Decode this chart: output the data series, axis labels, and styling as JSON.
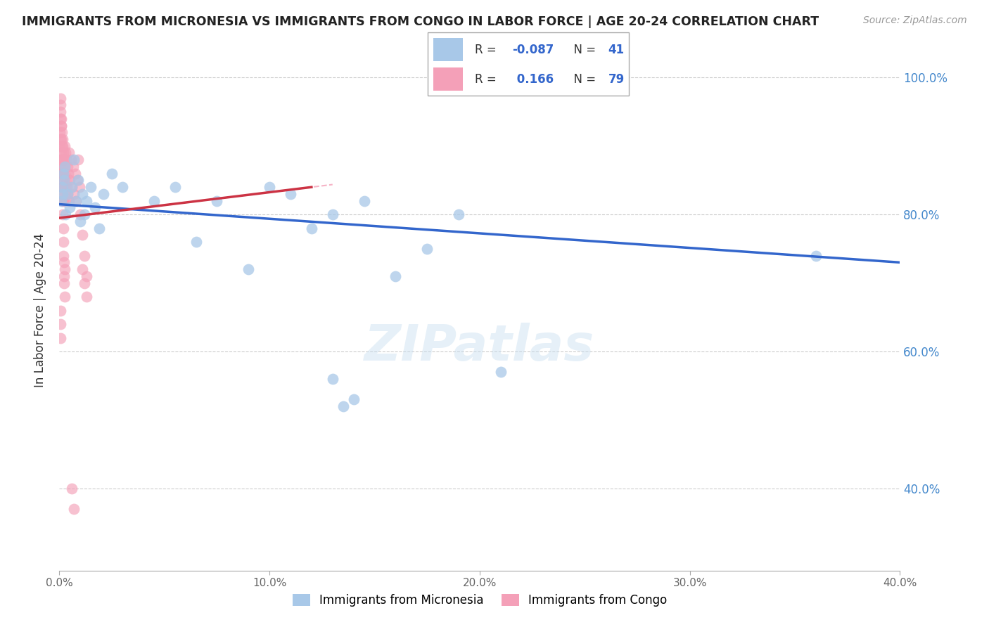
{
  "title": "IMMIGRANTS FROM MICRONESIA VS IMMIGRANTS FROM CONGO IN LABOR FORCE | AGE 20-24 CORRELATION CHART",
  "source": "Source: ZipAtlas.com",
  "ylabel": "In Labor Force | Age 20-24",
  "legend_label_1": "Immigrants from Micronesia",
  "legend_label_2": "Immigrants from Congo",
  "R1": -0.087,
  "N1": 41,
  "R2": 0.166,
  "N2": 79,
  "color1": "#a8c8e8",
  "color2": "#f4a0b8",
  "trend_color1": "#3366cc",
  "trend_color2": "#cc3344",
  "ref_line_color": "#f4a0b8",
  "xlim": [
    0.0,
    0.4
  ],
  "ylim": [
    0.28,
    1.04
  ],
  "xticks": [
    0.0,
    0.1,
    0.2,
    0.3,
    0.4
  ],
  "yticks": [
    0.4,
    0.6,
    0.8,
    1.0
  ],
  "xticklabels": [
    "0.0%",
    "10.0%",
    "20.0%",
    "30.0%",
    "40.0%"
  ],
  "yticklabels_right": [
    "40.0%",
    "60.0%",
    "80.0%",
    "100.0%"
  ],
  "micro_x": [
    0.0008,
    0.0012,
    0.0015,
    0.0018,
    0.0022,
    0.0025,
    0.003,
    0.004,
    0.005,
    0.006,
    0.007,
    0.008,
    0.009,
    0.01,
    0.011,
    0.012,
    0.013,
    0.015,
    0.017,
    0.019,
    0.021,
    0.025,
    0.03,
    0.045,
    0.055,
    0.065,
    0.075,
    0.09,
    0.1,
    0.11,
    0.12,
    0.13,
    0.145,
    0.16,
    0.175,
    0.19,
    0.21,
    0.36,
    0.13,
    0.14,
    0.135
  ],
  "micro_y": [
    0.82,
    0.84,
    0.83,
    0.86,
    0.85,
    0.87,
    0.8,
    0.83,
    0.81,
    0.84,
    0.88,
    0.82,
    0.85,
    0.79,
    0.83,
    0.8,
    0.82,
    0.84,
    0.81,
    0.78,
    0.83,
    0.86,
    0.84,
    0.82,
    0.84,
    0.76,
    0.82,
    0.72,
    0.84,
    0.83,
    0.78,
    0.8,
    0.82,
    0.71,
    0.75,
    0.8,
    0.57,
    0.74,
    0.56,
    0.53,
    0.52
  ],
  "congo_x": [
    0.0002,
    0.0003,
    0.0004,
    0.0005,
    0.0006,
    0.0007,
    0.0008,
    0.0009,
    0.001,
    0.0011,
    0.0012,
    0.0013,
    0.0014,
    0.0015,
    0.0016,
    0.0017,
    0.0018,
    0.0019,
    0.002,
    0.0021,
    0.0022,
    0.0023,
    0.0024,
    0.0025,
    0.0026,
    0.0027,
    0.0028,
    0.003,
    0.0032,
    0.0034,
    0.0036,
    0.0038,
    0.004,
    0.0042,
    0.0044,
    0.0046,
    0.005,
    0.0055,
    0.006,
    0.0065,
    0.007,
    0.0075,
    0.008,
    0.0085,
    0.009,
    0.0095,
    0.01,
    0.011,
    0.012,
    0.013,
    0.0005,
    0.0006,
    0.0007,
    0.0008,
    0.0009,
    0.001,
    0.0011,
    0.0012,
    0.0013,
    0.0014,
    0.0015,
    0.0016,
    0.0017,
    0.0018,
    0.0019,
    0.002,
    0.0021,
    0.0022,
    0.0023,
    0.0024,
    0.0025,
    0.0004,
    0.0005,
    0.0006,
    0.011,
    0.012,
    0.013,
    0.006,
    0.007
  ],
  "congo_y": [
    0.9,
    0.92,
    0.88,
    0.94,
    0.87,
    0.91,
    0.86,
    0.89,
    0.93,
    0.85,
    0.88,
    0.84,
    0.91,
    0.87,
    0.9,
    0.83,
    0.86,
    0.89,
    0.82,
    0.88,
    0.85,
    0.87,
    0.84,
    0.9,
    0.83,
    0.86,
    0.89,
    0.82,
    0.85,
    0.88,
    0.84,
    0.87,
    0.83,
    0.86,
    0.89,
    0.82,
    0.85,
    0.88,
    0.84,
    0.87,
    0.83,
    0.86,
    0.82,
    0.85,
    0.88,
    0.84,
    0.8,
    0.77,
    0.74,
    0.71,
    0.96,
    0.97,
    0.95,
    0.93,
    0.91,
    0.94,
    0.92,
    0.9,
    0.88,
    0.86,
    0.84,
    0.82,
    0.8,
    0.78,
    0.76,
    0.74,
    0.73,
    0.71,
    0.7,
    0.72,
    0.68,
    0.66,
    0.64,
    0.62,
    0.72,
    0.7,
    0.68,
    0.4,
    0.37
  ]
}
